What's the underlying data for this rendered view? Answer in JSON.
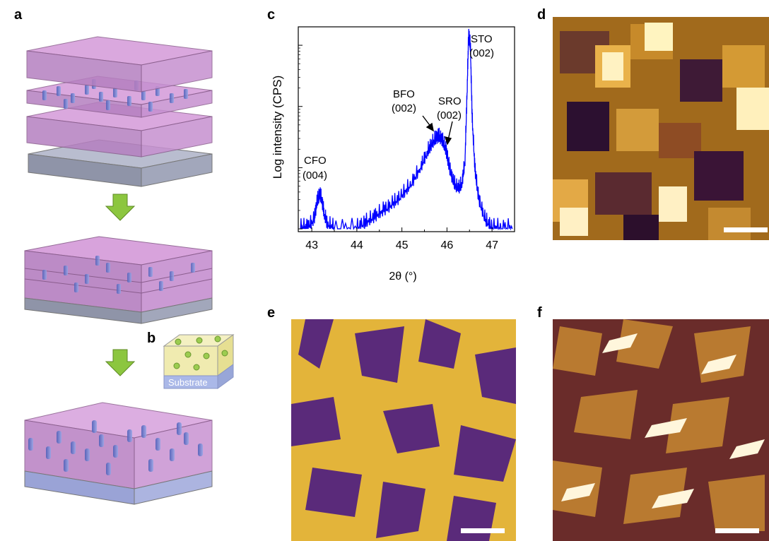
{
  "panels": {
    "a": "a",
    "b": "b",
    "c": "c",
    "d": "d",
    "e": "e",
    "f": "f"
  },
  "schematic_b": {
    "substrate_label": "Substrate"
  },
  "chart_data": {
    "type": "line",
    "title": "",
    "xlabel": "2θ (°)",
    "ylabel": "Log intensity (CPS)",
    "xlim": [
      42.7,
      47.5
    ],
    "xticks": [
      "43",
      "44",
      "45",
      "46",
      "47"
    ],
    "ylog": true,
    "grid": false,
    "series": [
      {
        "color": "#0000ff",
        "x": [
          42.75,
          42.9,
          43.05,
          43.12,
          43.18,
          43.22,
          43.28,
          43.35,
          43.5,
          44.0,
          44.2,
          44.4,
          44.6,
          44.8,
          45.0,
          45.2,
          45.4,
          45.55,
          45.65,
          45.75,
          45.82,
          45.9,
          45.98,
          46.05,
          46.15,
          46.25,
          46.33,
          46.4,
          46.45,
          46.48,
          46.52,
          46.56,
          46.62,
          46.7,
          46.85,
          47.0,
          47.2,
          47.45
        ],
        "y": [
          1,
          1,
          1.3,
          2.6,
          3.4,
          2.8,
          1.6,
          1.1,
          1,
          1,
          1.2,
          1.5,
          1.9,
          2.4,
          3.3,
          5.0,
          9.0,
          16,
          22,
          28,
          30,
          26,
          18,
          9.5,
          5.2,
          4.2,
          5.0,
          12,
          200,
          1400,
          900,
          60,
          9,
          3,
          1.3,
          1,
          1,
          1
        ]
      }
    ],
    "annotations": [
      {
        "name": "CFO",
        "index": "(004)"
      },
      {
        "name": "BFO",
        "index": "(002)"
      },
      {
        "name": "SRO",
        "index": "(002)"
      },
      {
        "name": "STO",
        "index": "(002)"
      }
    ]
  }
}
